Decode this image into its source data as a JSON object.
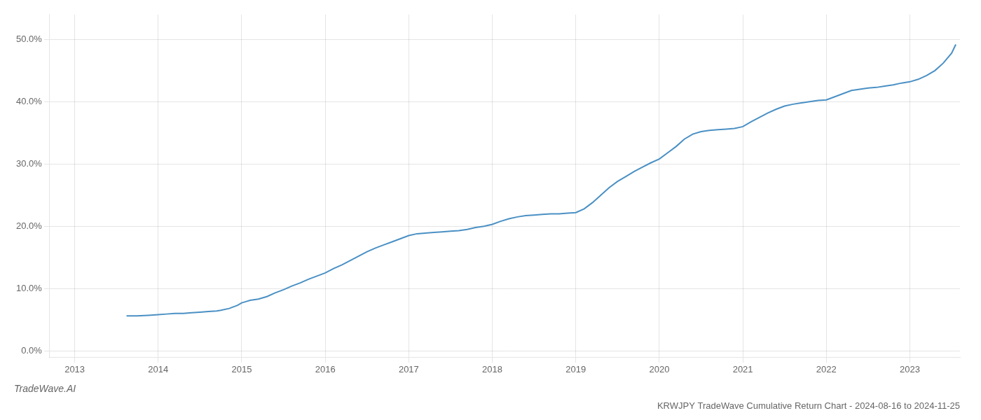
{
  "chart_data": {
    "type": "line",
    "title": "KRWJPY TradeWave Cumulative Return Chart - 2024-08-16 to 2024-11-25",
    "annotations": [
      "TradeWave.AI"
    ],
    "x": [
      2013.62,
      2013.75,
      2013.88,
      2014.0,
      2014.1,
      2014.2,
      2014.3,
      2014.4,
      2014.5,
      2014.6,
      2014.7,
      2014.75,
      2014.85,
      2014.95,
      2015.0,
      2015.05,
      2015.1,
      2015.2,
      2015.3,
      2015.4,
      2015.5,
      2015.6,
      2015.7,
      2015.8,
      2015.9,
      2016.0,
      2016.1,
      2016.2,
      2016.3,
      2016.4,
      2016.5,
      2016.6,
      2016.7,
      2016.8,
      2016.9,
      2017.0,
      2017.1,
      2017.2,
      2017.3,
      2017.4,
      2017.5,
      2017.6,
      2017.7,
      2017.8,
      2017.9,
      2018.0,
      2018.1,
      2018.2,
      2018.3,
      2018.4,
      2018.5,
      2018.6,
      2018.7,
      2018.8,
      2018.9,
      2019.0,
      2019.1,
      2019.2,
      2019.3,
      2019.4,
      2019.5,
      2019.6,
      2019.7,
      2019.8,
      2019.9,
      2020.0,
      2020.1,
      2020.2,
      2020.3,
      2020.4,
      2020.5,
      2020.6,
      2020.7,
      2020.8,
      2020.9,
      2021.0,
      2021.1,
      2021.2,
      2021.3,
      2021.4,
      2021.5,
      2021.6,
      2021.7,
      2021.8,
      2021.9,
      2022.0,
      2022.1,
      2022.2,
      2022.3,
      2022.4,
      2022.5,
      2022.6,
      2022.7,
      2022.8,
      2022.9,
      2023.0,
      2023.1,
      2023.2,
      2023.3,
      2023.4,
      2023.5,
      2023.55
    ],
    "values": [
      0.056,
      0.056,
      0.057,
      0.058,
      0.059,
      0.06,
      0.06,
      0.061,
      0.062,
      0.063,
      0.064,
      0.065,
      0.068,
      0.073,
      0.077,
      0.079,
      0.081,
      0.083,
      0.087,
      0.093,
      0.098,
      0.104,
      0.109,
      0.115,
      0.12,
      0.125,
      0.132,
      0.138,
      0.145,
      0.152,
      0.159,
      0.165,
      0.17,
      0.175,
      0.18,
      0.185,
      0.188,
      0.189,
      0.19,
      0.191,
      0.192,
      0.193,
      0.195,
      0.198,
      0.2,
      0.203,
      0.208,
      0.212,
      0.215,
      0.217,
      0.218,
      0.219,
      0.22,
      0.22,
      0.221,
      0.222,
      0.228,
      0.238,
      0.25,
      0.262,
      0.272,
      0.28,
      0.288,
      0.295,
      0.302,
      0.308,
      0.318,
      0.328,
      0.34,
      0.348,
      0.352,
      0.354,
      0.355,
      0.356,
      0.357,
      0.36,
      0.368,
      0.375,
      0.382,
      0.388,
      0.393,
      0.396,
      0.398,
      0.4,
      0.402,
      0.403,
      0.408,
      0.413,
      0.418,
      0.42,
      0.422,
      0.423,
      0.425,
      0.427,
      0.43,
      0.432,
      0.436,
      0.442,
      0.45,
      0.462,
      0.478,
      0.492
    ],
    "color": "#4a90c4",
    "xlim": [
      2012.7,
      2023.6
    ],
    "xticks": [
      2013,
      2014,
      2015,
      2016,
      2017,
      2018,
      2019,
      2020,
      2021,
      2022,
      2023
    ],
    "ylim": [
      -0.01,
      0.54
    ],
    "yticks": [
      {
        "value": 0.0,
        "label": "0.0%"
      },
      {
        "value": 0.1,
        "label": "10.0%"
      },
      {
        "value": 0.2,
        "label": "20.0%"
      },
      {
        "value": 0.3,
        "label": "30.0%"
      },
      {
        "value": 0.4,
        "label": "40.0%"
      },
      {
        "value": 0.5,
        "label": "50.0%"
      }
    ],
    "grid": true
  }
}
